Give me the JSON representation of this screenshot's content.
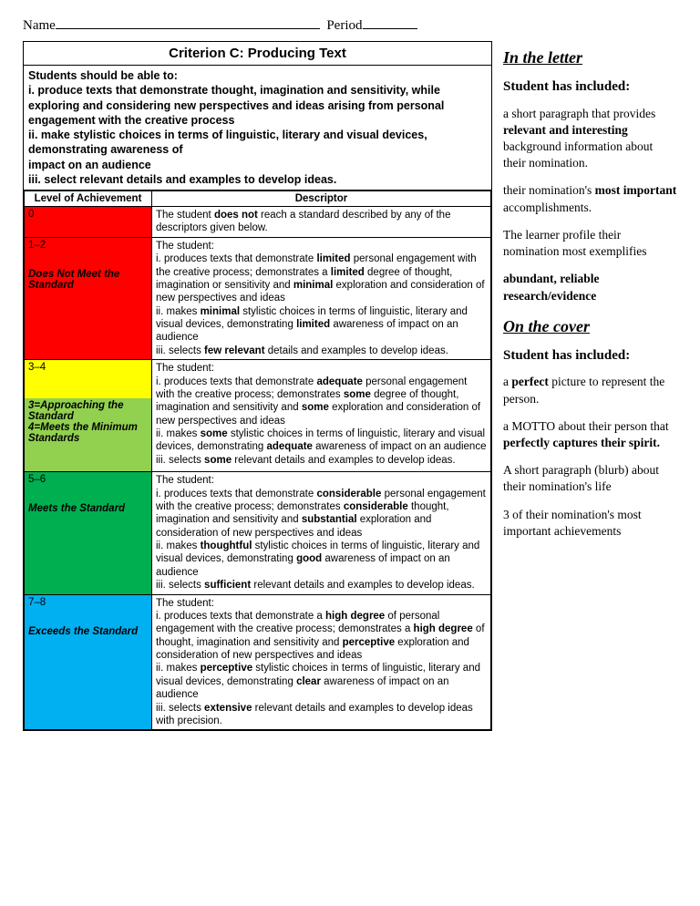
{
  "header": {
    "name_label": "Name",
    "period_label": "Period"
  },
  "rubric": {
    "title": "Criterion C: Producing Text",
    "intro_lead": "Students should be able to:",
    "intro_body_html": "i. produce texts that demonstrate thought, imagination and sensitivity, while exploring and considering new perspectives and ideas arising from personal engagement with the creative process<br>ii. make stylistic choices in terms of linguistic, literary and visual devices, demonstrating awareness of<br>impact on an audience<br>iii. select relevant details and examples to develop ideas.",
    "col1_header": "Level of Achievement",
    "col2_header": "Descriptor",
    "rows": [
      {
        "range": "0",
        "label": "",
        "color_class": "c-red",
        "desc_html": "The student <b>does not</b> reach a standard described by any of the descriptors given below."
      },
      {
        "range": "1–2",
        "label": "Does Not Meet the Standard",
        "color_class": "c-red",
        "desc_html": "The student:<br>i. produces texts that demonstrate <b>limited</b> personal engagement with the creative process; demonstrates a <b>limited</b> degree of thought, imagination or sensitivity and <b>minimal</b> exploration and consideration of new perspectives and ideas<br>ii. makes <b>minimal</b> stylistic choices in terms of linguistic, literary and visual devices, demonstrating <b>limited</b> awareness of impact on an audience<br>iii. selects <b>few relevant</b> details and examples to develop ideas."
      },
      {
        "range": "3–4",
        "label": "3=Approaching the Standard<br>4=Meets the Minimum Standards",
        "color_class_range": "c-yellow",
        "color_class_label": "c-lgreen",
        "desc_html": "The student:<br>i. produces texts that demonstrate <b>adequate</b> personal engagement with the creative process; demonstrates <b>some</b> degree of thought, imagination and sensitivity and <b>some</b> exploration and consideration of new perspectives and ideas<br>ii. makes <b>some</b> stylistic choices in terms of linguistic, literary and visual<br>devices, demonstrating <b>adequate</b> awareness of impact on an audience<br>iii. selects <b>some</b> relevant details and examples to develop ideas."
      },
      {
        "range": "5–6",
        "label": "Meets the Standard",
        "color_class": "c-green",
        "desc_html": "The student:<br>i. produces texts that demonstrate <b>considerable</b> personal engagement<br>with the creative process; demonstrates <b>considerable</b> thought,<br>imagination and sensitivity and <b>substantial</b> exploration and consideration of new perspectives and ideas<br>ii. makes <b>thoughtful</b> stylistic choices in terms of linguistic, literary and visual devices, demonstrating <b>good</b> awareness of impact on an audience<br>iii. selects <b>sufficient</b> relevant details and examples to develop ideas."
      },
      {
        "range": "7–8",
        "label": "Exceeds the Standard",
        "color_class": "c-blue",
        "desc_html": "The student:<br>i. produces texts that demonstrate a <b>high degree</b> of personal engagement with the creative process; demonstrates a <b>high degree</b> of thought, imagination and sensitivity and <b>perceptive</b> exploration and consideration of new perspectives and ideas<br>ii. makes <b>perceptive</b> stylistic choices in terms of linguistic, literary and visual devices, demonstrating <b>clear</b> awareness of impact on an audience<br>iii. selects <b>extensive</b> relevant details and examples to develop ideas with precision."
      }
    ]
  },
  "sidebar": {
    "section1_title": "In the letter",
    "section1_sub": "Student has included:",
    "section1_items_html": [
      "a short paragraph that provides <b>relevant and interesting</b> background information about their nomination.",
      "their nomination's <b>most important</b> accomplishments.",
      "The learner profile their nomination most exemplifies",
      "<b>abundant, reliable research/evidence</b>"
    ],
    "section2_title": "On the cover",
    "section2_sub": "Student has included:",
    "section2_items_html": [
      "a <b>perfect</b> picture to represent the person.",
      "a MOTTO about their person that <b>perfectly captures their spirit.</b>",
      "A short paragraph (blurb) about their nomination's life",
      "3 of their nomination's most important achievements"
    ]
  }
}
